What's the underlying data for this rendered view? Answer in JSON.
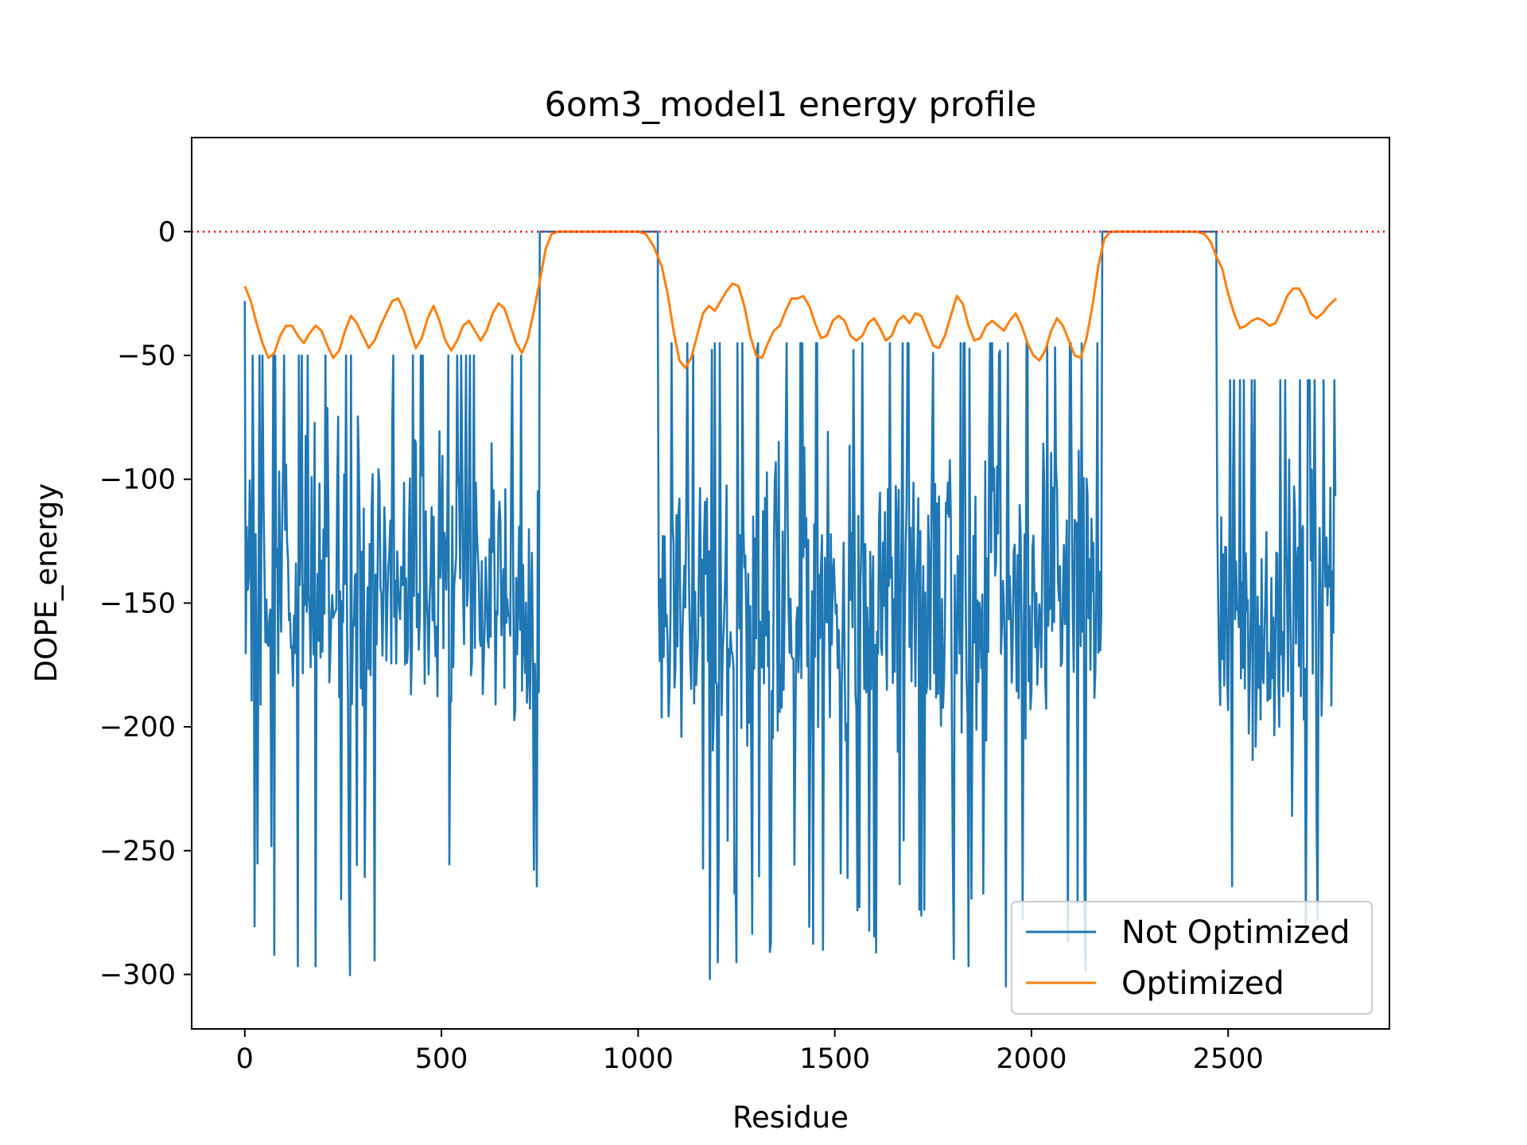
{
  "chart_data": {
    "type": "line",
    "title": "6om3_model1 energy profile",
    "xlabel": "Residue",
    "ylabel": "DOPE_energy",
    "xlim": [
      -135,
      2910
    ],
    "ylim": [
      -322,
      38
    ],
    "xticks": [
      0,
      500,
      1000,
      1500,
      2000,
      2500
    ],
    "yticks": [
      0,
      -50,
      -100,
      -150,
      -200,
      -250,
      -300
    ],
    "xtick_labels": [
      "0",
      "500",
      "1000",
      "1500",
      "2000",
      "2500"
    ],
    "ytick_labels": [
      "0",
      "−50",
      "−100",
      "−150",
      "−200",
      "−250",
      "−300"
    ],
    "reference_line": {
      "y": 0,
      "color": "#ff0000",
      "style": "dotted"
    },
    "legend": {
      "position": "lower right"
    },
    "series": [
      {
        "name": "Not Optimized",
        "color": "#1f77b4",
        "segments": [
          [
            0,
            750,
            -28,
            -65,
            -305,
            -50,
            13
          ],
          [
            1050,
            2180,
            -30,
            -75,
            -305,
            -45,
            21
          ],
          [
            2470,
            2775,
            -30,
            -80,
            -290,
            -60,
            11
          ]
        ],
        "flat_segments": [
          [
            750,
            1050,
            0
          ],
          [
            2180,
            2470,
            0
          ]
        ]
      },
      {
        "name": "Optimized",
        "color": "#ff7f0e",
        "points": [
          [
            0,
            -22
          ],
          [
            15,
            -28
          ],
          [
            30,
            -37
          ],
          [
            45,
            -45
          ],
          [
            60,
            -51
          ],
          [
            75,
            -49
          ],
          [
            90,
            -42
          ],
          [
            105,
            -38
          ],
          [
            120,
            -38
          ],
          [
            135,
            -42
          ],
          [
            150,
            -45
          ],
          [
            165,
            -41
          ],
          [
            180,
            -38
          ],
          [
            195,
            -40
          ],
          [
            210,
            -46
          ],
          [
            225,
            -51
          ],
          [
            240,
            -48
          ],
          [
            255,
            -40
          ],
          [
            270,
            -34
          ],
          [
            285,
            -37
          ],
          [
            300,
            -42
          ],
          [
            315,
            -47
          ],
          [
            330,
            -44
          ],
          [
            345,
            -38
          ],
          [
            360,
            -33
          ],
          [
            375,
            -28
          ],
          [
            390,
            -27
          ],
          [
            405,
            -32
          ],
          [
            420,
            -40
          ],
          [
            435,
            -47
          ],
          [
            450,
            -43
          ],
          [
            465,
            -35
          ],
          [
            480,
            -30
          ],
          [
            495,
            -36
          ],
          [
            510,
            -44
          ],
          [
            525,
            -48
          ],
          [
            540,
            -44
          ],
          [
            555,
            -38
          ],
          [
            570,
            -36
          ],
          [
            585,
            -40
          ],
          [
            600,
            -44
          ],
          [
            615,
            -40
          ],
          [
            630,
            -33
          ],
          [
            645,
            -29
          ],
          [
            660,
            -31
          ],
          [
            675,
            -38
          ],
          [
            690,
            -45
          ],
          [
            705,
            -49
          ],
          [
            720,
            -43
          ],
          [
            735,
            -32
          ],
          [
            750,
            -20
          ],
          [
            765,
            -7
          ],
          [
            780,
            -1
          ],
          [
            795,
            0
          ],
          [
            1000,
            0
          ],
          [
            1020,
            -1
          ],
          [
            1040,
            -6
          ],
          [
            1060,
            -14
          ],
          [
            1075,
            -25
          ],
          [
            1090,
            -40
          ],
          [
            1105,
            -52
          ],
          [
            1120,
            -55
          ],
          [
            1135,
            -51
          ],
          [
            1150,
            -42
          ],
          [
            1165,
            -33
          ],
          [
            1180,
            -30
          ],
          [
            1195,
            -32
          ],
          [
            1210,
            -28
          ],
          [
            1225,
            -24
          ],
          [
            1240,
            -21
          ],
          [
            1255,
            -22
          ],
          [
            1270,
            -30
          ],
          [
            1285,
            -42
          ],
          [
            1300,
            -50
          ],
          [
            1315,
            -51
          ],
          [
            1330,
            -45
          ],
          [
            1345,
            -40
          ],
          [
            1360,
            -38
          ],
          [
            1375,
            -32
          ],
          [
            1390,
            -27
          ],
          [
            1405,
            -27
          ],
          [
            1420,
            -26
          ],
          [
            1435,
            -30
          ],
          [
            1450,
            -37
          ],
          [
            1465,
            -43
          ],
          [
            1480,
            -42
          ],
          [
            1495,
            -36
          ],
          [
            1510,
            -34
          ],
          [
            1525,
            -36
          ],
          [
            1540,
            -42
          ],
          [
            1555,
            -44
          ],
          [
            1570,
            -42
          ],
          [
            1585,
            -37
          ],
          [
            1600,
            -35
          ],
          [
            1615,
            -39
          ],
          [
            1630,
            -44
          ],
          [
            1645,
            -42
          ],
          [
            1660,
            -36
          ],
          [
            1675,
            -34
          ],
          [
            1690,
            -37
          ],
          [
            1705,
            -33
          ],
          [
            1720,
            -34
          ],
          [
            1735,
            -40
          ],
          [
            1750,
            -46
          ],
          [
            1765,
            -47
          ],
          [
            1780,
            -42
          ],
          [
            1795,
            -34
          ],
          [
            1810,
            -26
          ],
          [
            1825,
            -29
          ],
          [
            1840,
            -38
          ],
          [
            1855,
            -44
          ],
          [
            1870,
            -43
          ],
          [
            1885,
            -38
          ],
          [
            1900,
            -36
          ],
          [
            1915,
            -38
          ],
          [
            1930,
            -40
          ],
          [
            1945,
            -36
          ],
          [
            1960,
            -33
          ],
          [
            1975,
            -38
          ],
          [
            1990,
            -45
          ],
          [
            2005,
            -50
          ],
          [
            2020,
            -52
          ],
          [
            2035,
            -48
          ],
          [
            2050,
            -40
          ],
          [
            2065,
            -35
          ],
          [
            2080,
            -38
          ],
          [
            2095,
            -44
          ],
          [
            2110,
            -50
          ],
          [
            2125,
            -51
          ],
          [
            2140,
            -43
          ],
          [
            2155,
            -30
          ],
          [
            2170,
            -14
          ],
          [
            2185,
            -3
          ],
          [
            2200,
            0
          ],
          [
            2420,
            0
          ],
          [
            2440,
            -1
          ],
          [
            2455,
            -4
          ],
          [
            2470,
            -10
          ],
          [
            2485,
            -15
          ],
          [
            2500,
            -25
          ],
          [
            2515,
            -33
          ],
          [
            2530,
            -39
          ],
          [
            2545,
            -38
          ],
          [
            2560,
            -36
          ],
          [
            2575,
            -35
          ],
          [
            2590,
            -36
          ],
          [
            2605,
            -38
          ],
          [
            2620,
            -37
          ],
          [
            2635,
            -32
          ],
          [
            2650,
            -26
          ],
          [
            2665,
            -23
          ],
          [
            2680,
            -23
          ],
          [
            2695,
            -27
          ],
          [
            2710,
            -33
          ],
          [
            2725,
            -35
          ],
          [
            2740,
            -33
          ],
          [
            2755,
            -30
          ],
          [
            2775,
            -27
          ]
        ]
      }
    ]
  }
}
